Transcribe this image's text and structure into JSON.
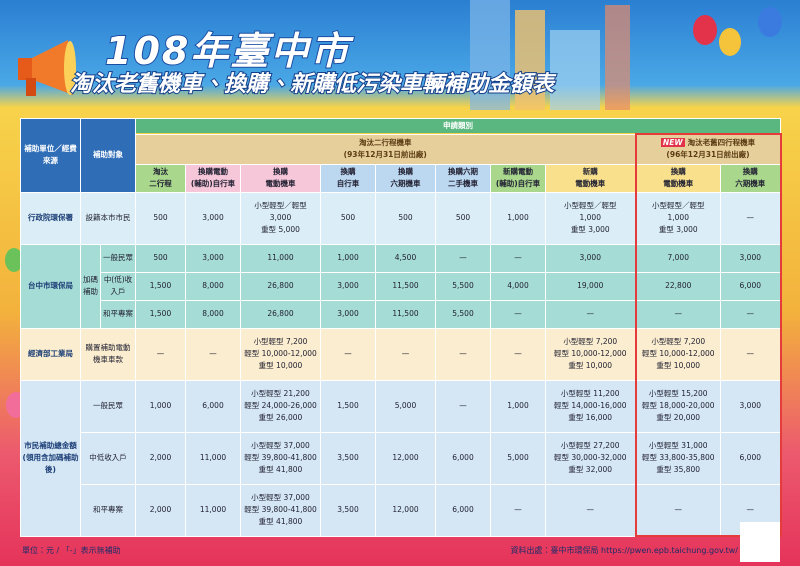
{
  "header": {
    "title": "108年臺中市",
    "subtitle": "淘汰老舊機車、換購、新購低污染車輛補助金額表"
  },
  "table": {
    "category_header": "申請類別",
    "corner": [
      "補助單位／經費來源",
      "補助對象"
    ],
    "groups": [
      {
        "label": "淘汰二行程機車",
        "note": "(93年12月31日前出廠)"
      },
      {
        "badge": "NEW",
        "label": "淘汰老舊四行程機車",
        "note": "(96年12月31日前出廠)"
      }
    ],
    "columns": [
      [
        "淘汰",
        "二行程"
      ],
      [
        "換購電動",
        "(輔助)自行車"
      ],
      [
        "換購",
        "電動機車"
      ],
      [
        "換購",
        "自行車"
      ],
      [
        "換購",
        "六期機車"
      ],
      [
        "換購六期",
        "二手機車"
      ],
      [
        "新購電動",
        "(輔助)自行車"
      ],
      [
        "新購",
        "電動機車"
      ],
      [
        "換購",
        "電動機車"
      ],
      [
        "換購",
        "六期機車"
      ]
    ],
    "sections": [
      {
        "agency": "行政院環保署",
        "rows": [
          {
            "target": "設籍本市市民",
            "cells": [
              "500",
              "3,000",
              [
                "小型輕型／輕型",
                "3,000",
                "重型 5,000"
              ],
              "500",
              "500",
              "500",
              "1,000",
              [
                "小型輕型／輕型",
                "1,000",
                "重型 3,000"
              ],
              [
                "小型輕型／輕型",
                "1,000",
                "重型 3,000"
              ],
              "—"
            ]
          }
        ]
      },
      {
        "agency": "台中市環保局",
        "subgroup": "加碼補助",
        "rows": [
          {
            "target": "一般民眾",
            "cells": [
              "500",
              "3,000",
              "11,000",
              "1,000",
              "4,500",
              "—",
              "—",
              "3,000",
              "7,000",
              "3,000"
            ]
          },
          {
            "target": "中(低)收入戶",
            "cells": [
              "1,500",
              "8,000",
              "26,800",
              "3,000",
              "11,500",
              "5,500",
              "4,000",
              "19,000",
              "22,800",
              "6,000"
            ]
          },
          {
            "target": "和平專案",
            "cells": [
              "1,500",
              "8,000",
              "26,800",
              "3,000",
              "11,500",
              "5,500",
              "—",
              "—",
              "—",
              "—"
            ]
          }
        ]
      },
      {
        "agency": "經濟部工業局",
        "rows": [
          {
            "target": "購置補助電動機車車款",
            "cells": [
              "—",
              "—",
              [
                "小型輕型 7,200",
                "輕型 10,000-12,000",
                "重型 10,000"
              ],
              "—",
              "—",
              "—",
              "—",
              [
                "小型輕型 7,200",
                "輕型 10,000-12,000",
                "重型 10,000"
              ],
              [
                "小型輕型 7,200",
                "輕型 10,000-12,000",
                "重型 10,000"
              ],
              "—"
            ]
          }
        ]
      },
      {
        "agency": "市民補助總金額",
        "agency_note": "(領用含加碼補助後)",
        "rows": [
          {
            "target": "一般民眾",
            "cells": [
              "1,000",
              "6,000",
              [
                "小型輕型 21,200",
                "輕型 24,000-26,000",
                "重型 26,000"
              ],
              "1,500",
              "5,000",
              "—",
              "1,000",
              [
                "小型輕型 11,200",
                "輕型 14,000-16,000",
                "重型 16,000"
              ],
              [
                "小型輕型 15,200",
                "輕型 18,000-20,000",
                "重型 20,000"
              ],
              "3,000"
            ]
          },
          {
            "target": "中低收入戶",
            "cells": [
              "2,000",
              "11,000",
              [
                "小型輕型 37,000",
                "輕型 39,800-41,800",
                "重型 41,800"
              ],
              "3,500",
              "12,000",
              "6,000",
              "5,000",
              [
                "小型輕型 27,200",
                "輕型 30,000-32,000",
                "重型 32,000"
              ],
              [
                "小型輕型 31,000",
                "輕型 33,800-35,800",
                "重型 35,800"
              ],
              "6,000"
            ]
          },
          {
            "target": "和平專案",
            "cells": [
              "2,000",
              "11,000",
              [
                "小型輕型 37,000",
                "輕型 39,800-41,800",
                "重型 41,800"
              ],
              "3,500",
              "12,000",
              "6,000",
              "—",
              "—",
              "—",
              "—"
            ]
          }
        ]
      }
    ]
  },
  "footer": {
    "unit": "單位：元 / 「-」表示無補助",
    "source": "資料出處：臺中市環保局 https://pwen.epb.taichung.gov.tw/"
  }
}
